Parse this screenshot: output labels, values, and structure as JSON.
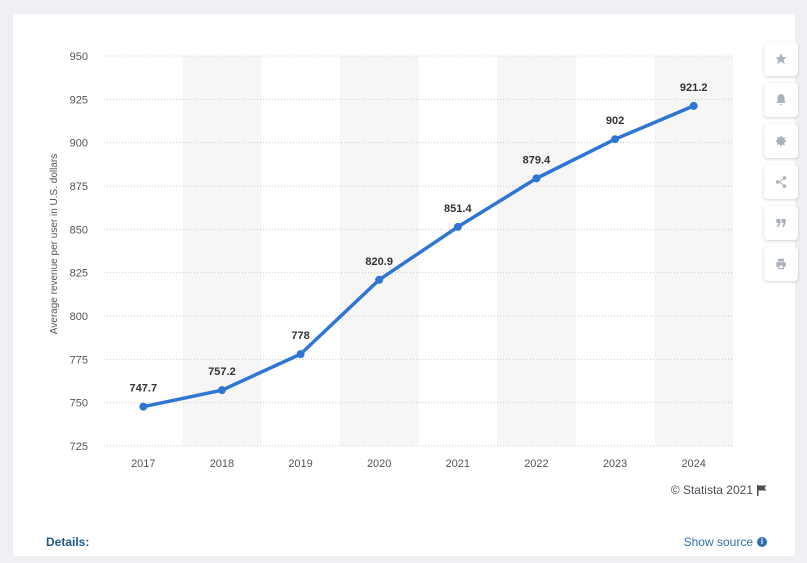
{
  "chart_data": {
    "type": "line",
    "ylabel": "Average revenue per user in U.S. dollars",
    "xlabel": "",
    "categories": [
      "2017",
      "2018",
      "2019",
      "2020",
      "2021",
      "2022",
      "2023",
      "2024"
    ],
    "values": [
      747.7,
      757.2,
      778,
      820.9,
      851.4,
      879.4,
      902,
      921.2
    ],
    "data_labels": [
      "747.7",
      "757.2",
      "778",
      "820.9",
      "851.4",
      "879.4",
      "902",
      "921.2"
    ],
    "ylim": [
      725,
      950
    ],
    "yticks": [
      "725",
      "750",
      "775",
      "800",
      "825",
      "850",
      "875",
      "900",
      "925",
      "950"
    ],
    "grid": true,
    "alternating_column_bands": true,
    "colors": {
      "line": "#2f76d4",
      "band": "#f6f6f6",
      "grid": "#c9ccd0"
    }
  },
  "toolbar": {
    "icons": [
      "star-icon",
      "bell-icon",
      "gear-icon",
      "share-icon",
      "quote-icon",
      "print-icon"
    ]
  },
  "footer": {
    "copyright": "© Statista 2021",
    "details_label": "Details:",
    "show_source": "Show source"
  }
}
